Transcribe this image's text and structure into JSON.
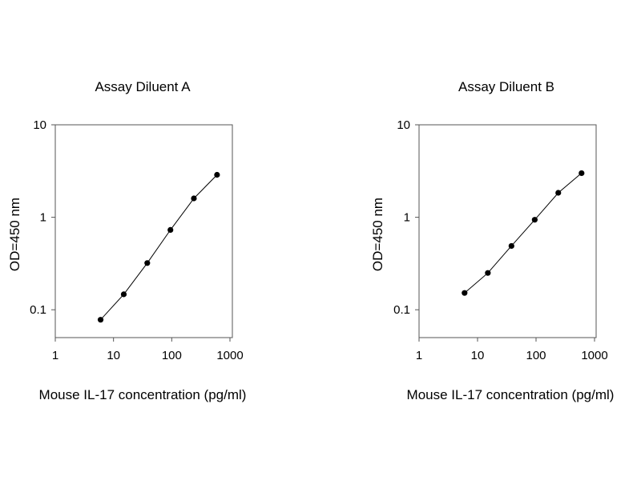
{
  "chart_data": [
    {
      "type": "line",
      "title": "Assay Diluent A",
      "xlabel": "Mouse IL-17 concentration (pg/ml)",
      "ylabel": "OD=450 nm",
      "xscale": "log",
      "yscale": "log",
      "xlim": [
        1,
        1000
      ],
      "ylim": [
        0.05,
        10
      ],
      "xticks": [
        "1",
        "10",
        "100",
        "1000"
      ],
      "yticks": [
        "0.1",
        "1",
        "10"
      ],
      "grid": false,
      "x": [
        6,
        15,
        38,
        95,
        240,
        600
      ],
      "y": [
        0.078,
        0.147,
        0.32,
        0.73,
        1.6,
        2.88
      ]
    },
    {
      "type": "line",
      "title": "Assay Diluent B",
      "xlabel": "Mouse IL-17 concentration (pg/ml)",
      "ylabel": "OD=450 nm",
      "xscale": "log",
      "yscale": "log",
      "xlim": [
        1,
        1000
      ],
      "ylim": [
        0.05,
        10
      ],
      "xticks": [
        "1",
        "10",
        "100",
        "1000"
      ],
      "yticks": [
        "0.1",
        "1",
        "10"
      ],
      "grid": false,
      "x": [
        6,
        15,
        38,
        95,
        240,
        600
      ],
      "y": [
        0.152,
        0.25,
        0.49,
        0.94,
        1.84,
        3.0
      ]
    }
  ]
}
